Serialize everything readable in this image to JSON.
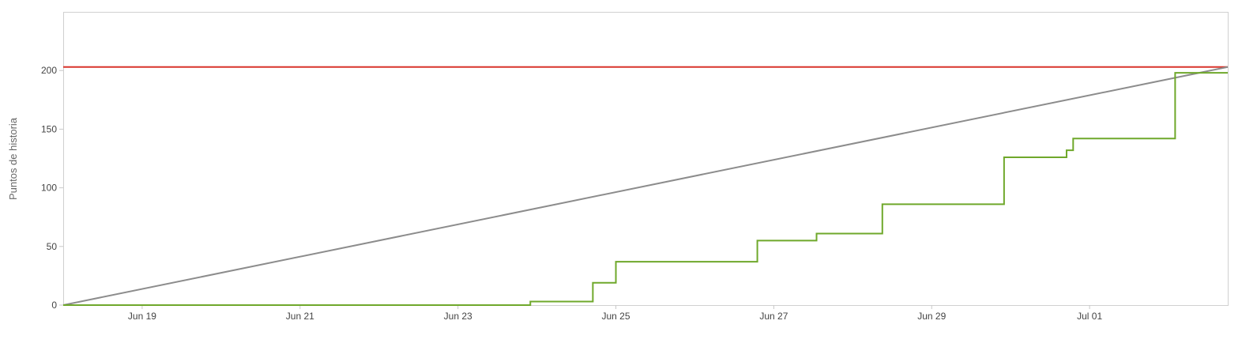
{
  "chart_data": {
    "type": "line",
    "title": "",
    "xlabel": "",
    "ylabel": "Puntos de historia",
    "xlim": [
      "2018-06-18",
      "2018-07-02T18:00"
    ],
    "ylim": [
      0,
      250
    ],
    "yticks": [
      0,
      50,
      100,
      150,
      200
    ],
    "xticks": [
      {
        "date": "2018-06-19",
        "label": "Jun 19"
      },
      {
        "date": "2018-06-21",
        "label": "Jun 21"
      },
      {
        "date": "2018-06-23",
        "label": "Jun 23"
      },
      {
        "date": "2018-06-25",
        "label": "Jun 25"
      },
      {
        "date": "2018-06-27",
        "label": "Jun 27"
      },
      {
        "date": "2018-06-29",
        "label": "Jun 29"
      },
      {
        "date": "2018-07-01",
        "label": "Jul 01"
      }
    ],
    "grid": false,
    "legend": "none",
    "series": [
      {
        "color": "#d9342b",
        "style": "line",
        "points": [
          {
            "x": "2018-06-18",
            "y": 203
          },
          {
            "x": "2018-07-02T18:00",
            "y": 203
          }
        ]
      },
      {
        "color": "#8c8c8c",
        "style": "line",
        "points": [
          {
            "x": "2018-06-18",
            "y": 0
          },
          {
            "x": "2018-07-02T18:00",
            "y": 203
          }
        ]
      },
      {
        "color": "#6fa82b",
        "style": "step",
        "points": [
          {
            "x": "2018-06-18",
            "y": 0
          },
          {
            "x": "2018-06-23T22:00",
            "y": 3
          },
          {
            "x": "2018-06-24T17:00",
            "y": 19
          },
          {
            "x": "2018-06-25T00:00",
            "y": 37
          },
          {
            "x": "2018-06-26T19:00",
            "y": 55
          },
          {
            "x": "2018-06-27T13:00",
            "y": 61
          },
          {
            "x": "2018-06-28T09:00",
            "y": 86
          },
          {
            "x": "2018-06-29T22:00",
            "y": 126
          },
          {
            "x": "2018-06-30T17:00",
            "y": 132
          },
          {
            "x": "2018-06-30T19:00",
            "y": 142
          },
          {
            "x": "2018-07-02T02:00",
            "y": 198
          },
          {
            "x": "2018-07-02T18:00",
            "y": 198
          }
        ]
      }
    ]
  }
}
